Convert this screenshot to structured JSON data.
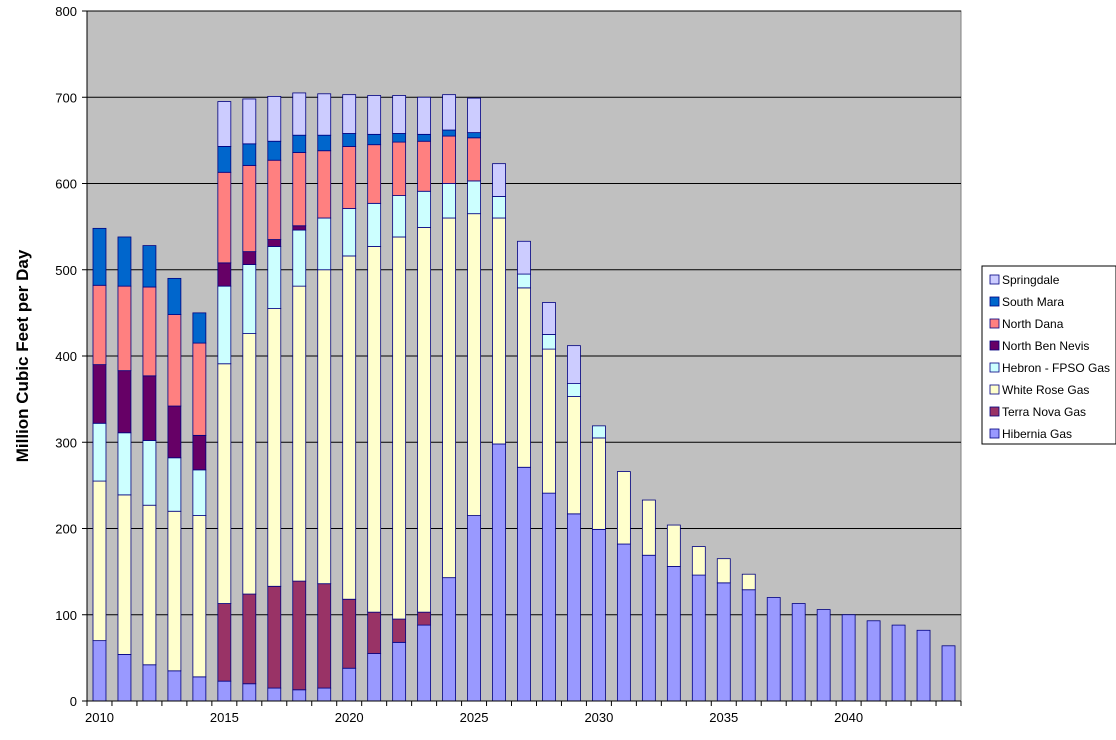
{
  "chart_data": {
    "type": "bar",
    "stacked": true,
    "title": "",
    "xlabel": "",
    "ylabel": "Million Cubic Feet per Day",
    "ylim": [
      0,
      800
    ],
    "yticks": [
      0,
      100,
      200,
      300,
      400,
      500,
      600,
      700,
      800
    ],
    "xtick_labels": [
      "2010",
      "2015",
      "2020",
      "2025",
      "2030",
      "2035",
      "2040"
    ],
    "grid": true,
    "legend_position": "right",
    "categories": [
      2010,
      2011,
      2012,
      2013,
      2014,
      2015,
      2016,
      2017,
      2018,
      2019,
      2020,
      2021,
      2022,
      2023,
      2024,
      2025,
      2026,
      2027,
      2028,
      2029,
      2030,
      2031,
      2032,
      2033,
      2034,
      2035,
      2036,
      2037,
      2038,
      2039,
      2040,
      2041,
      2042,
      2043,
      2044
    ],
    "series": [
      {
        "name": "Hibernia Gas",
        "color": "#9999ff",
        "values": [
          70,
          54,
          42,
          35,
          28,
          23,
          20,
          15,
          13,
          15,
          38,
          55,
          68,
          88,
          143,
          215,
          298,
          271,
          241,
          217,
          199,
          182,
          169,
          156,
          146,
          137,
          129,
          120,
          113,
          106,
          100,
          93,
          88,
          82,
          64
        ]
      },
      {
        "name": "Terra Nova Gas",
        "color": "#993366",
        "values": [
          0,
          0,
          0,
          0,
          0,
          90,
          104,
          118,
          126,
          121,
          80,
          48,
          27,
          15,
          0,
          0,
          0,
          0,
          0,
          0,
          0,
          0,
          0,
          0,
          0,
          0,
          0,
          0,
          0,
          0,
          0,
          0,
          0,
          0,
          0
        ]
      },
      {
        "name": "White Rose Gas",
        "color": "#ffffcc",
        "values": [
          185,
          185,
          185,
          185,
          187,
          278,
          302,
          322,
          342,
          364,
          398,
          424,
          443,
          446,
          417,
          350,
          262,
          208,
          167,
          136,
          106,
          84,
          64,
          48,
          33,
          28,
          18,
          0,
          0,
          0,
          0,
          0,
          0,
          0,
          0
        ]
      },
      {
        "name": "Hebron - FPSO Gas",
        "color": "#ccffff",
        "values": [
          67,
          72,
          75,
          62,
          53,
          90,
          80,
          72,
          65,
          60,
          55,
          50,
          48,
          42,
          40,
          38,
          25,
          16,
          17,
          15,
          14,
          0,
          0,
          0,
          0,
          0,
          0,
          0,
          0,
          0,
          0,
          0,
          0,
          0,
          0
        ]
      },
      {
        "name": "North Ben Nevis",
        "color": "#660066",
        "values": [
          68,
          72,
          75,
          60,
          40,
          27,
          15,
          8,
          5,
          0,
          0,
          0,
          0,
          0,
          0,
          0,
          0,
          0,
          0,
          0,
          0,
          0,
          0,
          0,
          0,
          0,
          0,
          0,
          0,
          0,
          0,
          0,
          0,
          0,
          0
        ]
      },
      {
        "name": "North Dana",
        "color": "#ff8080",
        "values": [
          92,
          98,
          103,
          106,
          107,
          105,
          100,
          92,
          85,
          78,
          72,
          68,
          62,
          58,
          55,
          50,
          0,
          0,
          0,
          0,
          0,
          0,
          0,
          0,
          0,
          0,
          0,
          0,
          0,
          0,
          0,
          0,
          0,
          0,
          0
        ]
      },
      {
        "name": "South Mara",
        "color": "#0066cc",
        "values": [
          66,
          57,
          48,
          42,
          35,
          30,
          25,
          22,
          20,
          18,
          15,
          12,
          10,
          8,
          7,
          6,
          0,
          0,
          0,
          0,
          0,
          0,
          0,
          0,
          0,
          0,
          0,
          0,
          0,
          0,
          0,
          0,
          0,
          0,
          0
        ]
      },
      {
        "name": "Springdale",
        "color": "#ccccff",
        "values": [
          0,
          0,
          0,
          0,
          0,
          52,
          52,
          52,
          49,
          48,
          45,
          45,
          44,
          43,
          41,
          40,
          38,
          38,
          37,
          44,
          0,
          0,
          0,
          0,
          0,
          0,
          0,
          0,
          0,
          0,
          0,
          0,
          0,
          0,
          0
        ]
      }
    ]
  },
  "colors": {
    "plot_background": "#c0c0c0",
    "gridline": "#000000",
    "bar_outline": "#000080"
  }
}
